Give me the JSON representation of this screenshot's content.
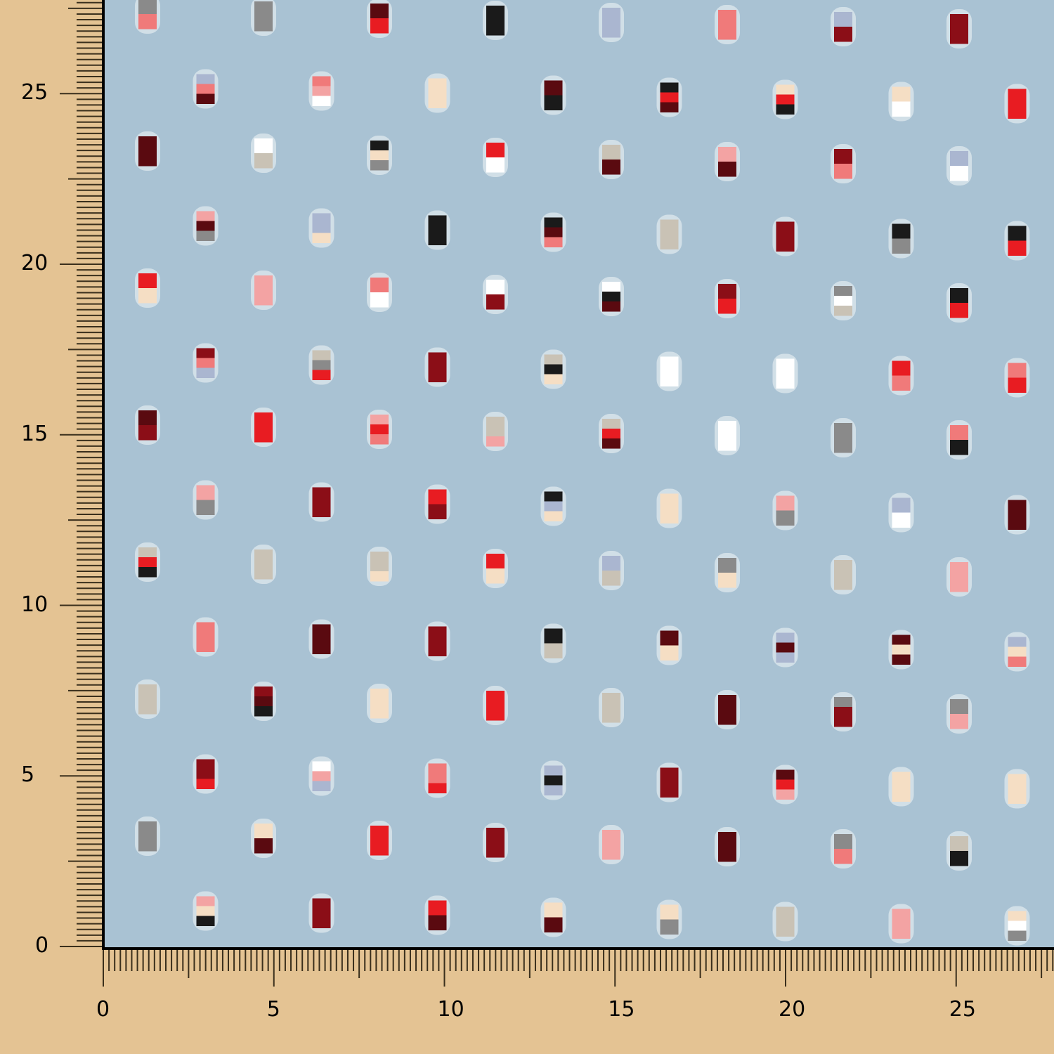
{
  "swatch": {
    "description_colors": {
      "ruler_background": "#e4c393",
      "ruler_ticks": "#3a2f1c",
      "fabric_base": "#a9c2d3",
      "fabric_frame": "#000000"
    },
    "hole_palette": [
      "#e81c22",
      "#f07a7a",
      "#f3a3a3",
      "#8b0e17",
      "#5a0a10",
      "#1a1a1a",
      "#8a8a8a",
      "#c9c2b5",
      "#ffffff",
      "#f5dec4",
      "#aab6d0"
    ]
  },
  "ruler_x": {
    "labels": [
      "0",
      "5",
      "10",
      "15",
      "20",
      "25"
    ]
  },
  "ruler_y": {
    "labels": [
      "0",
      "5",
      "10",
      "15",
      "20",
      "25"
    ]
  }
}
